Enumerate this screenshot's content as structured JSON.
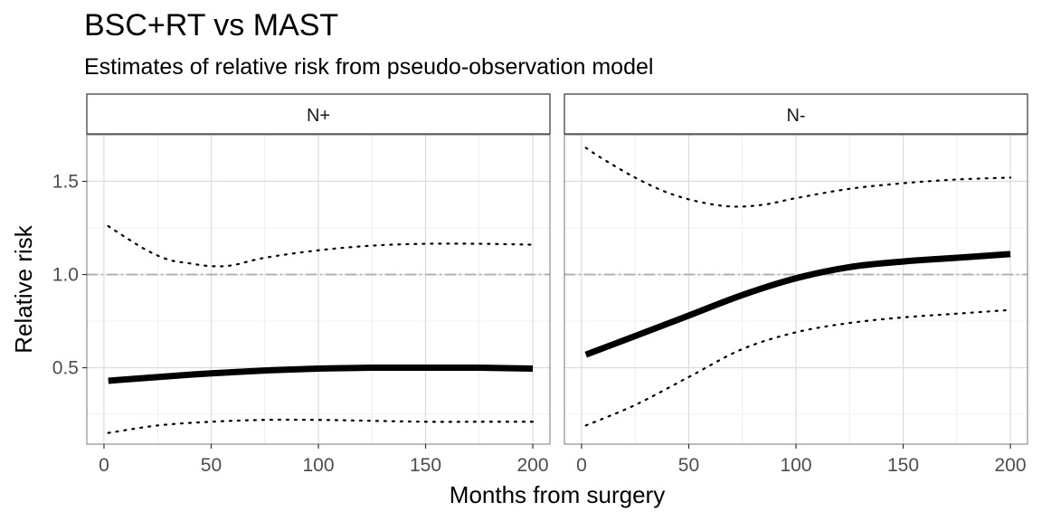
{
  "chart_data": {
    "type": "line",
    "title": "BSC+RT vs MAST",
    "subtitle": "Estimates of relative risk from pseudo-observation model",
    "xlabel": "Months from surgery",
    "ylabel": "Relative risk",
    "xlim": [
      -8,
      208
    ],
    "ylim": [
      0.09,
      1.75
    ],
    "x_ticks": [
      0,
      50,
      100,
      150,
      200
    ],
    "y_ticks": [
      0.5,
      1.0,
      1.5
    ],
    "x_tick_labels": [
      "0",
      "50",
      "100",
      "150",
      "200"
    ],
    "y_tick_labels": [
      "0.5",
      "1.0",
      "1.5"
    ],
    "grid": true,
    "reference_line": 1.0,
    "panels": [
      {
        "label": "N+",
        "estimate": {
          "x": [
            2,
            25,
            50,
            75,
            100,
            125,
            150,
            175,
            200
          ],
          "y": [
            0.43,
            0.45,
            0.47,
            0.485,
            0.495,
            0.5,
            0.5,
            0.5,
            0.495
          ]
        },
        "upper": {
          "x": [
            2,
            10,
            20,
            30,
            40,
            50,
            60,
            75,
            100,
            125,
            150,
            175,
            200
          ],
          "y": [
            1.26,
            1.2,
            1.13,
            1.08,
            1.06,
            1.045,
            1.05,
            1.09,
            1.13,
            1.155,
            1.165,
            1.165,
            1.16
          ]
        },
        "lower": {
          "x": [
            2,
            25,
            50,
            75,
            100,
            125,
            150,
            175,
            200
          ],
          "y": [
            0.15,
            0.19,
            0.21,
            0.22,
            0.22,
            0.215,
            0.21,
            0.21,
            0.21
          ]
        }
      },
      {
        "label": "N-",
        "estimate": {
          "x": [
            2,
            25,
            50,
            75,
            100,
            125,
            150,
            175,
            200
          ],
          "y": [
            0.57,
            0.67,
            0.78,
            0.89,
            0.98,
            1.04,
            1.07,
            1.09,
            1.11
          ]
        },
        "upper": {
          "x": [
            2,
            10,
            25,
            40,
            55,
            70,
            85,
            100,
            125,
            150,
            175,
            200
          ],
          "y": [
            1.68,
            1.62,
            1.52,
            1.44,
            1.39,
            1.365,
            1.375,
            1.41,
            1.46,
            1.49,
            1.51,
            1.52
          ]
        },
        "lower": {
          "x": [
            2,
            25,
            50,
            75,
            100,
            125,
            150,
            175,
            200
          ],
          "y": [
            0.19,
            0.3,
            0.45,
            0.6,
            0.69,
            0.74,
            0.77,
            0.79,
            0.81
          ]
        }
      }
    ]
  }
}
